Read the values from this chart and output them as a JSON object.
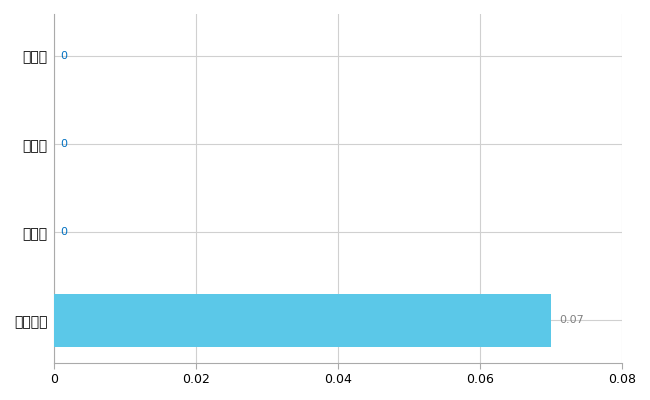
{
  "categories": [
    "東御市",
    "県平均",
    "県最大",
    "全国平均"
  ],
  "values": [
    0,
    0,
    0,
    0.07
  ],
  "bar_color": "#5bc8e8",
  "value_labels": [
    "0",
    "0",
    "0",
    "0.07"
  ],
  "value_label_color_zero": "#0070c0",
  "value_label_color_nonzero": "#808080",
  "xlim": [
    0,
    0.08
  ],
  "xticks": [
    0,
    0.02,
    0.04,
    0.06,
    0.08
  ],
  "background_color": "#ffffff",
  "grid_color": "#d0d0d0",
  "bar_height": 0.6,
  "figsize": [
    6.5,
    4.0
  ],
  "dpi": 100
}
